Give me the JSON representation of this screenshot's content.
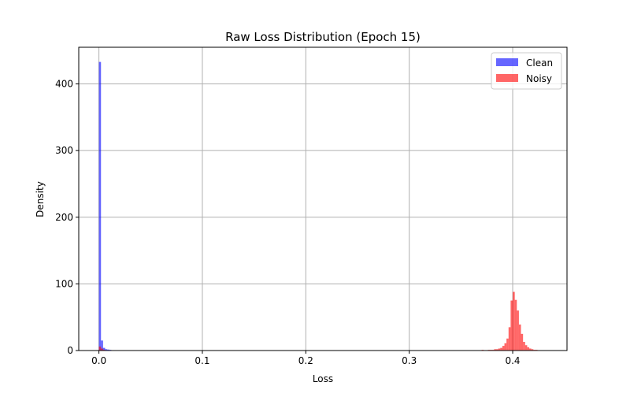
{
  "chart_data": {
    "type": "histogram",
    "title": "Raw Loss Distribution (Epoch 15)",
    "xlabel": "Loss",
    "ylabel": "Density",
    "xlim": [
      -0.0195,
      0.4525
    ],
    "ylim": [
      0,
      455
    ],
    "x_ticks": [
      0.0,
      0.1,
      0.2,
      0.3,
      0.4
    ],
    "x_tick_labels": [
      "0.0",
      "0.1",
      "0.2",
      "0.3",
      "0.4"
    ],
    "y_ticks": [
      0,
      100,
      200,
      300,
      400
    ],
    "y_tick_labels": [
      "0",
      "100",
      "200",
      "300",
      "400"
    ],
    "grid": true,
    "legend_position": "upper-right",
    "series": [
      {
        "name": "Clean",
        "color": "#0000ff",
        "alpha": 0.6,
        "bins": [
          {
            "x0": 0.0,
            "x1": 0.002,
            "value": 433
          },
          {
            "x0": 0.002,
            "x1": 0.004,
            "value": 15
          },
          {
            "x0": 0.004,
            "x1": 0.006,
            "value": 4
          },
          {
            "x0": 0.006,
            "x1": 0.008,
            "value": 2
          },
          {
            "x0": 0.008,
            "x1": 0.01,
            "value": 1.5
          },
          {
            "x0": 0.01,
            "x1": 0.012,
            "value": 1
          }
        ]
      },
      {
        "name": "Noisy",
        "color": "#ff0000",
        "alpha": 0.6,
        "bins": [
          {
            "x0": 0.0,
            "x1": 0.002,
            "value": 6
          },
          {
            "x0": 0.002,
            "x1": 0.004,
            "value": 3
          },
          {
            "x0": 0.004,
            "x1": 0.006,
            "value": 1
          },
          {
            "x0": 0.37,
            "x1": 0.372,
            "value": 1
          },
          {
            "x0": 0.376,
            "x1": 0.378,
            "value": 1
          },
          {
            "x0": 0.378,
            "x1": 0.38,
            "value": 1
          },
          {
            "x0": 0.38,
            "x1": 0.382,
            "value": 1
          },
          {
            "x0": 0.382,
            "x1": 0.384,
            "value": 2
          },
          {
            "x0": 0.384,
            "x1": 0.386,
            "value": 2
          },
          {
            "x0": 0.386,
            "x1": 0.388,
            "value": 3
          },
          {
            "x0": 0.388,
            "x1": 0.39,
            "value": 4
          },
          {
            "x0": 0.39,
            "x1": 0.392,
            "value": 7
          },
          {
            "x0": 0.392,
            "x1": 0.394,
            "value": 11
          },
          {
            "x0": 0.394,
            "x1": 0.396,
            "value": 18
          },
          {
            "x0": 0.396,
            "x1": 0.398,
            "value": 35
          },
          {
            "x0": 0.398,
            "x1": 0.4,
            "value": 75
          },
          {
            "x0": 0.4,
            "x1": 0.402,
            "value": 88
          },
          {
            "x0": 0.402,
            "x1": 0.404,
            "value": 76
          },
          {
            "x0": 0.404,
            "x1": 0.406,
            "value": 60
          },
          {
            "x0": 0.406,
            "x1": 0.408,
            "value": 39
          },
          {
            "x0": 0.408,
            "x1": 0.41,
            "value": 25
          },
          {
            "x0": 0.41,
            "x1": 0.412,
            "value": 13
          },
          {
            "x0": 0.412,
            "x1": 0.414,
            "value": 8
          },
          {
            "x0": 0.414,
            "x1": 0.416,
            "value": 5
          },
          {
            "x0": 0.416,
            "x1": 0.418,
            "value": 3
          },
          {
            "x0": 0.418,
            "x1": 0.42,
            "value": 2
          },
          {
            "x0": 0.42,
            "x1": 0.422,
            "value": 1
          },
          {
            "x0": 0.422,
            "x1": 0.424,
            "value": 1
          }
        ]
      }
    ]
  }
}
